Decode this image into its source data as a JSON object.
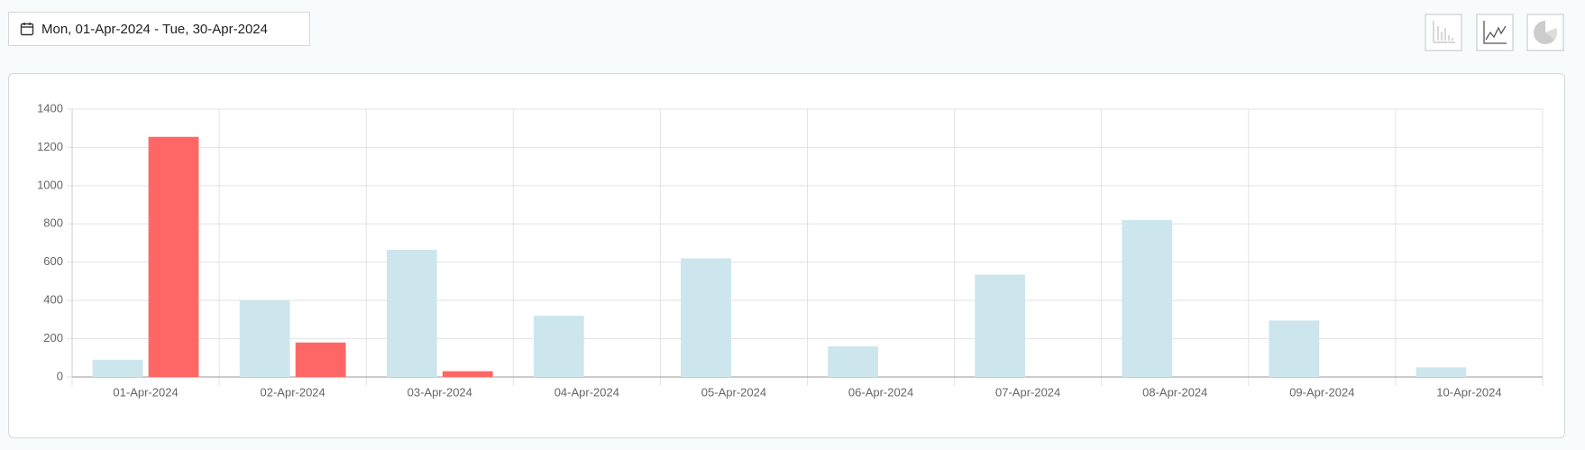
{
  "date_range": "Mon, 01-Apr-2024 - Tue, 30-Apr-2024",
  "chart_data": {
    "type": "bar",
    "categories": [
      "01-Apr-2024",
      "02-Apr-2024",
      "03-Apr-2024",
      "04-Apr-2024",
      "05-Apr-2024",
      "06-Apr-2024",
      "07-Apr-2024",
      "08-Apr-2024",
      "09-Apr-2024",
      "10-Apr-2024"
    ],
    "series": [
      {
        "color": "#cde6ed",
        "values": [
          90,
          400,
          665,
          320,
          620,
          160,
          535,
          820,
          295,
          50
        ]
      },
      {
        "color": "#ff6666",
        "values": [
          1255,
          180,
          30,
          0,
          0,
          0,
          0,
          0,
          0,
          0
        ]
      }
    ],
    "ylim": [
      0,
      1400
    ],
    "yticks": [
      0,
      200,
      400,
      600,
      800,
      1000,
      1200,
      1400
    ],
    "grid": true
  }
}
